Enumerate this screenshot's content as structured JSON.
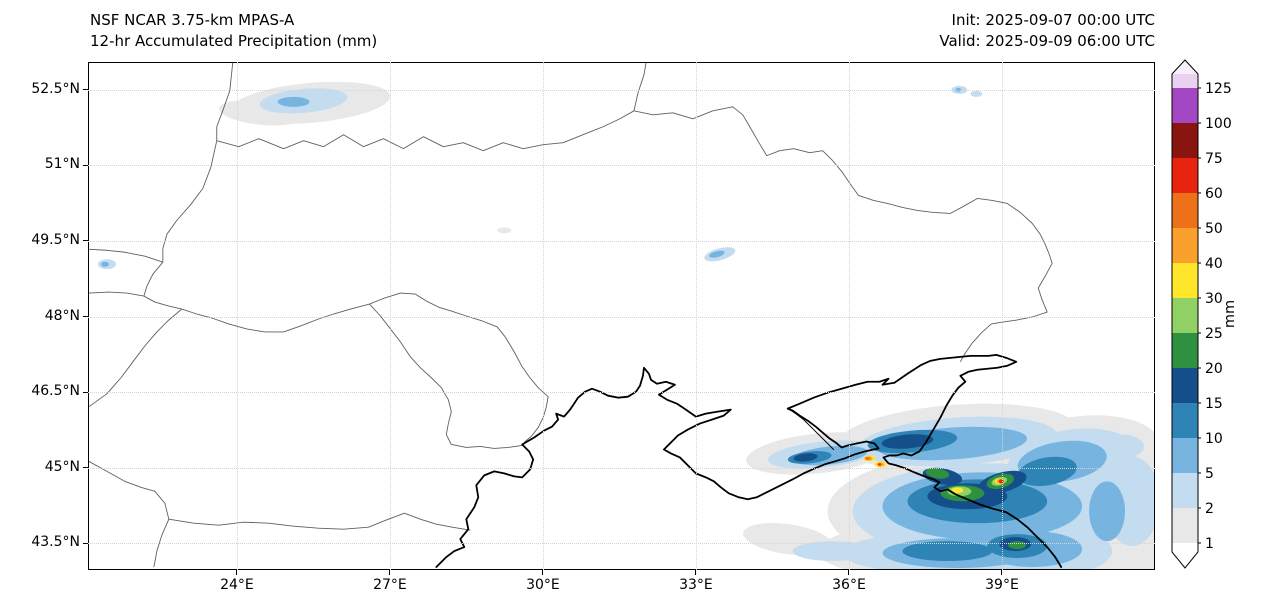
{
  "header": {
    "title_line1": "NSF NCAR 3.75-km MPAS-A",
    "title_line2": "12-hr Accumulated Precipitation (mm)",
    "init_time": "Init: 2025-09-07 00:00 UTC",
    "valid_time": "Valid: 2025-09-09 06:00 UTC"
  },
  "map": {
    "extent": {
      "lon_min": 21.1,
      "lon_max": 42.0,
      "lat_min": 43.0,
      "lat_max": 53.0
    },
    "lat_ticks": [
      {
        "value": 52.5,
        "label": "52.5°N"
      },
      {
        "value": 51.0,
        "label": "51°N"
      },
      {
        "value": 49.5,
        "label": "49.5°N"
      },
      {
        "value": 48.0,
        "label": "48°N"
      },
      {
        "value": 46.5,
        "label": "46.5°N"
      },
      {
        "value": 45.0,
        "label": "45°N"
      },
      {
        "value": 43.5,
        "label": "43.5°N"
      }
    ],
    "lon_ticks": [
      {
        "value": 24,
        "label": "24°E"
      },
      {
        "value": 27,
        "label": "27°E"
      },
      {
        "value": 30,
        "label": "30°E"
      },
      {
        "value": 33,
        "label": "33°E"
      },
      {
        "value": 36,
        "label": "36°E"
      },
      {
        "value": 39,
        "label": "39°E"
      }
    ]
  },
  "colorbar": {
    "unit": "mm",
    "levels": [
      {
        "label": "1",
        "color": "#e8e8e8"
      },
      {
        "label": "2",
        "color": "#c3dcf0"
      },
      {
        "label": "5",
        "color": "#77b5e0"
      },
      {
        "label": "10",
        "color": "#2e85b5"
      },
      {
        "label": "15",
        "color": "#144f8c"
      },
      {
        "label": "20",
        "color": "#2f9140"
      },
      {
        "label": "25",
        "color": "#8fd164"
      },
      {
        "label": "30",
        "color": "#ffe62b"
      },
      {
        "label": "40",
        "color": "#f9a12c"
      },
      {
        "label": "50",
        "color": "#ee7119"
      },
      {
        "label": "60",
        "color": "#e82310"
      },
      {
        "label": "75",
        "color": "#891510"
      },
      {
        "label": "100",
        "color": "#a348c2"
      },
      {
        "label": "125",
        "color": "#e9d1f2"
      }
    ],
    "over_arrow_color": "#f7f0fb",
    "under_arrow_color": "#ffffff"
  },
  "chart_data": {
    "type": "heatmap",
    "title": "12-hr Accumulated Precipitation (mm)",
    "model": "NSF NCAR 3.75-km MPAS-A",
    "init": "2025-09-07 00:00 UTC",
    "valid": "2025-09-09 06:00 UTC",
    "unit": "mm",
    "levels_mm": [
      1,
      2,
      5,
      10,
      15,
      20,
      25,
      30,
      40,
      50,
      60,
      75,
      100,
      125
    ],
    "extent": {
      "lon_min": 21.1,
      "lon_max": 42.0,
      "lat_min": 43.0,
      "lat_max": 53.0
    },
    "legend_position": "right",
    "features": [
      {
        "region": "patch near Belarus border (~25.3°E, 52.3°N)",
        "max_mm": "2–5"
      },
      {
        "region": "small cell (~33.4°E, 49.3°N)",
        "max_mm": "5–10"
      },
      {
        "region": "small cells (~38.2°E, 52.5°N)",
        "max_mm": "2–5"
      },
      {
        "region": "small cell (~21.4°E, 49.0°N)",
        "max_mm": "2–5"
      },
      {
        "region": "Kerch Strait cluster (~36.5°E, 45.1°N)",
        "max_mm": "50–60"
      },
      {
        "region": "NE Black Sea / Caucasus coast cell (~39.0°E, 44.7°N)",
        "max_mm": "60–75"
      },
      {
        "region": "broad shield over eastern Black Sea and Sea of Azov (35–42°E, 43–46.5°N)",
        "max_mm": "10–20"
      }
    ]
  }
}
